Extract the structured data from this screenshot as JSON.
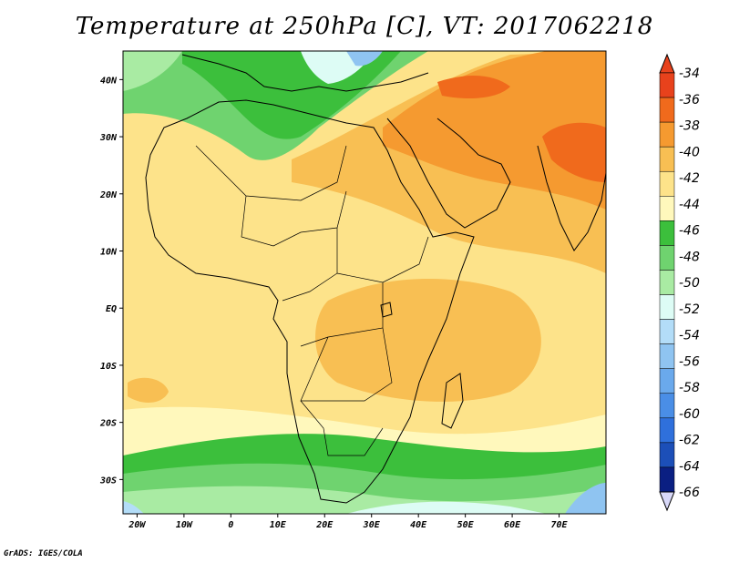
{
  "title": "Temperature at 250hPa [C], VT: 2017062218",
  "credit": "GrADS: IGES/COLA",
  "map": {
    "lon_range": [
      -23,
      80
    ],
    "lat_range": [
      -36,
      45
    ],
    "lat_ticks": [
      {
        "value": 40,
        "label": "40N"
      },
      {
        "value": 30,
        "label": "30N"
      },
      {
        "value": 20,
        "label": "20N"
      },
      {
        "value": 10,
        "label": "10N"
      },
      {
        "value": 0,
        "label": "EQ"
      },
      {
        "value": -10,
        "label": "10S"
      },
      {
        "value": -20,
        "label": "20S"
      },
      {
        "value": -30,
        "label": "30S"
      }
    ],
    "lon_ticks": [
      {
        "value": -20,
        "label": "20W"
      },
      {
        "value": -10,
        "label": "10W"
      },
      {
        "value": 0,
        "label": "0"
      },
      {
        "value": 10,
        "label": "10E"
      },
      {
        "value": 20,
        "label": "20E"
      },
      {
        "value": 30,
        "label": "30E"
      },
      {
        "value": 40,
        "label": "40E"
      },
      {
        "value": 50,
        "label": "50E"
      },
      {
        "value": 60,
        "label": "60E"
      },
      {
        "value": 70,
        "label": "70E"
      }
    ]
  },
  "colorbar": {
    "labels": [
      "-34",
      "-36",
      "-38",
      "-40",
      "-42",
      "-44",
      "-46",
      "-48",
      "-50",
      "-52",
      "-54",
      "-56",
      "-58",
      "-60",
      "-62",
      "-64",
      "-66"
    ],
    "colors": [
      "#e8421c",
      "#f06a1c",
      "#f59a30",
      "#f8bf53",
      "#fde38a",
      "#fff8bc",
      "#3cbf3c",
      "#6fd36f",
      "#a9eba3",
      "#ddfcf5",
      "#b3ddf8",
      "#8fc4f1",
      "#6aa9ec",
      "#4a8ee6",
      "#2f70dc",
      "#1c4fb8",
      "#0a1f82"
    ],
    "top_triangle_color": "#e8421c",
    "bottom_triangle_color": "#d8d8f8"
  }
}
